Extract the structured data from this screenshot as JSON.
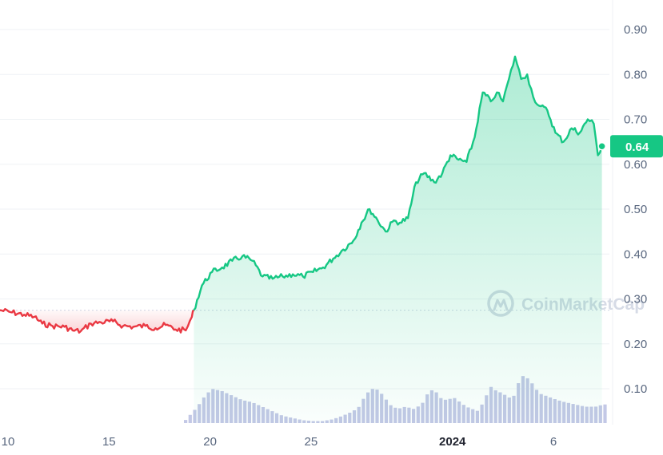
{
  "watermark": "CoinMarketCap",
  "colors": {
    "up": "#16c784",
    "down": "#ea3943",
    "volume": "#c3c8e6",
    "grid": "#eff2f5",
    "baseline": "#cfd6e4",
    "badge": "#16c784"
  },
  "chart_data": {
    "type": "line",
    "grid": true,
    "y_axis_position": "right",
    "ylim": [
      0.0,
      0.96
    ],
    "y_ticks": [
      "0.90",
      "0.80",
      "0.70",
      "0.60",
      "0.50",
      "0.40",
      "0.30",
      "0.20",
      "0.10"
    ],
    "y_tick_values": [
      0.9,
      0.8,
      0.7,
      0.6,
      0.5,
      0.4,
      0.3,
      0.2,
      0.1
    ],
    "x_ticks": [
      {
        "label": "10",
        "day": 10
      },
      {
        "label": "15",
        "day": 15
      },
      {
        "label": "20",
        "day": 20
      },
      {
        "label": "25",
        "day": 25
      },
      {
        "label": "2024",
        "day": 32,
        "bold": true
      },
      {
        "label": "6",
        "day": 37
      }
    ],
    "xlim": [
      10,
      39.6
    ],
    "baseline_price": 0.275,
    "current_price": {
      "label": "0.64",
      "value": 0.64
    },
    "series": [
      {
        "x": [
          9.6,
          10.2,
          10.8,
          11.3,
          11.7,
          12.2,
          12.8,
          13.2,
          13.6,
          14.1,
          14.6,
          15.2,
          15.7,
          16.2,
          16.8,
          17.3,
          17.8,
          18.3,
          18.8,
          19.1,
          19.2,
          19.6,
          20.1,
          20.6,
          21.1,
          21.6,
          22.1,
          22.6,
          23.1,
          23.6,
          24.1,
          24.6,
          25.1,
          25.6,
          26.1,
          26.6,
          27.1,
          27.5,
          27.9,
          28.3,
          28.7,
          29.1,
          29.4,
          29.8,
          30.2,
          30.6,
          31.1,
          31.5,
          31.9,
          32.3,
          32.7,
          33.1,
          33.5,
          33.9,
          34.2,
          34.5,
          34.8,
          35.1,
          35.4,
          35.7,
          36.0,
          36.3,
          36.7,
          37.1,
          37.5,
          37.9,
          38.3,
          38.7,
          39.0,
          39.2,
          39.4
        ],
        "values": [
          0.275,
          0.27,
          0.265,
          0.26,
          0.245,
          0.24,
          0.238,
          0.23,
          0.228,
          0.245,
          0.248,
          0.25,
          0.24,
          0.238,
          0.24,
          0.235,
          0.242,
          0.232,
          0.23,
          0.26,
          0.275,
          0.33,
          0.36,
          0.37,
          0.385,
          0.395,
          0.385,
          0.35,
          0.345,
          0.35,
          0.355,
          0.35,
          0.36,
          0.37,
          0.39,
          0.41,
          0.43,
          0.47,
          0.5,
          0.475,
          0.45,
          0.475,
          0.47,
          0.48,
          0.56,
          0.58,
          0.56,
          0.58,
          0.62,
          0.61,
          0.605,
          0.66,
          0.76,
          0.74,
          0.76,
          0.74,
          0.79,
          0.84,
          0.79,
          0.8,
          0.75,
          0.73,
          0.72,
          0.67,
          0.65,
          0.68,
          0.67,
          0.7,
          0.69,
          0.62,
          0.64
        ]
      },
      {
        "name": "volume",
        "x": [
          9.6,
          14.0,
          18.0,
          18.6,
          19.0,
          19.3,
          19.6,
          20.0,
          20.5,
          21.0,
          21.5,
          22.0,
          22.5,
          23.0,
          23.5,
          24.0,
          24.5,
          25.0,
          25.5,
          26.0,
          26.5,
          27.0,
          27.3,
          27.6,
          27.9,
          28.2,
          28.5,
          28.8,
          29.2,
          29.6,
          30.0,
          30.4,
          30.7,
          31.0,
          31.3,
          31.6,
          32.0,
          32.3,
          32.6,
          32.9,
          33.2,
          33.5,
          33.8,
          34.1,
          34.4,
          34.7,
          35.0,
          35.3,
          35.6,
          35.9,
          36.2,
          36.5,
          36.8,
          37.1,
          37.5,
          38.0,
          38.5,
          39.0,
          39.4
        ],
        "values": [
          0.016,
          0.015,
          0.016,
          0.025,
          0.045,
          0.06,
          0.08,
          0.1,
          0.095,
          0.085,
          0.075,
          0.07,
          0.06,
          0.05,
          0.04,
          0.035,
          0.03,
          0.028,
          0.028,
          0.032,
          0.04,
          0.05,
          0.06,
          0.085,
          0.1,
          0.098,
          0.085,
          0.065,
          0.055,
          0.06,
          0.055,
          0.065,
          0.09,
          0.1,
          0.08,
          0.075,
          0.08,
          0.07,
          0.06,
          0.055,
          0.05,
          0.075,
          0.105,
          0.095,
          0.09,
          0.08,
          0.085,
          0.13,
          0.125,
          0.11,
          0.09,
          0.085,
          0.08,
          0.075,
          0.07,
          0.065,
          0.06,
          0.06,
          0.065
        ]
      }
    ]
  }
}
